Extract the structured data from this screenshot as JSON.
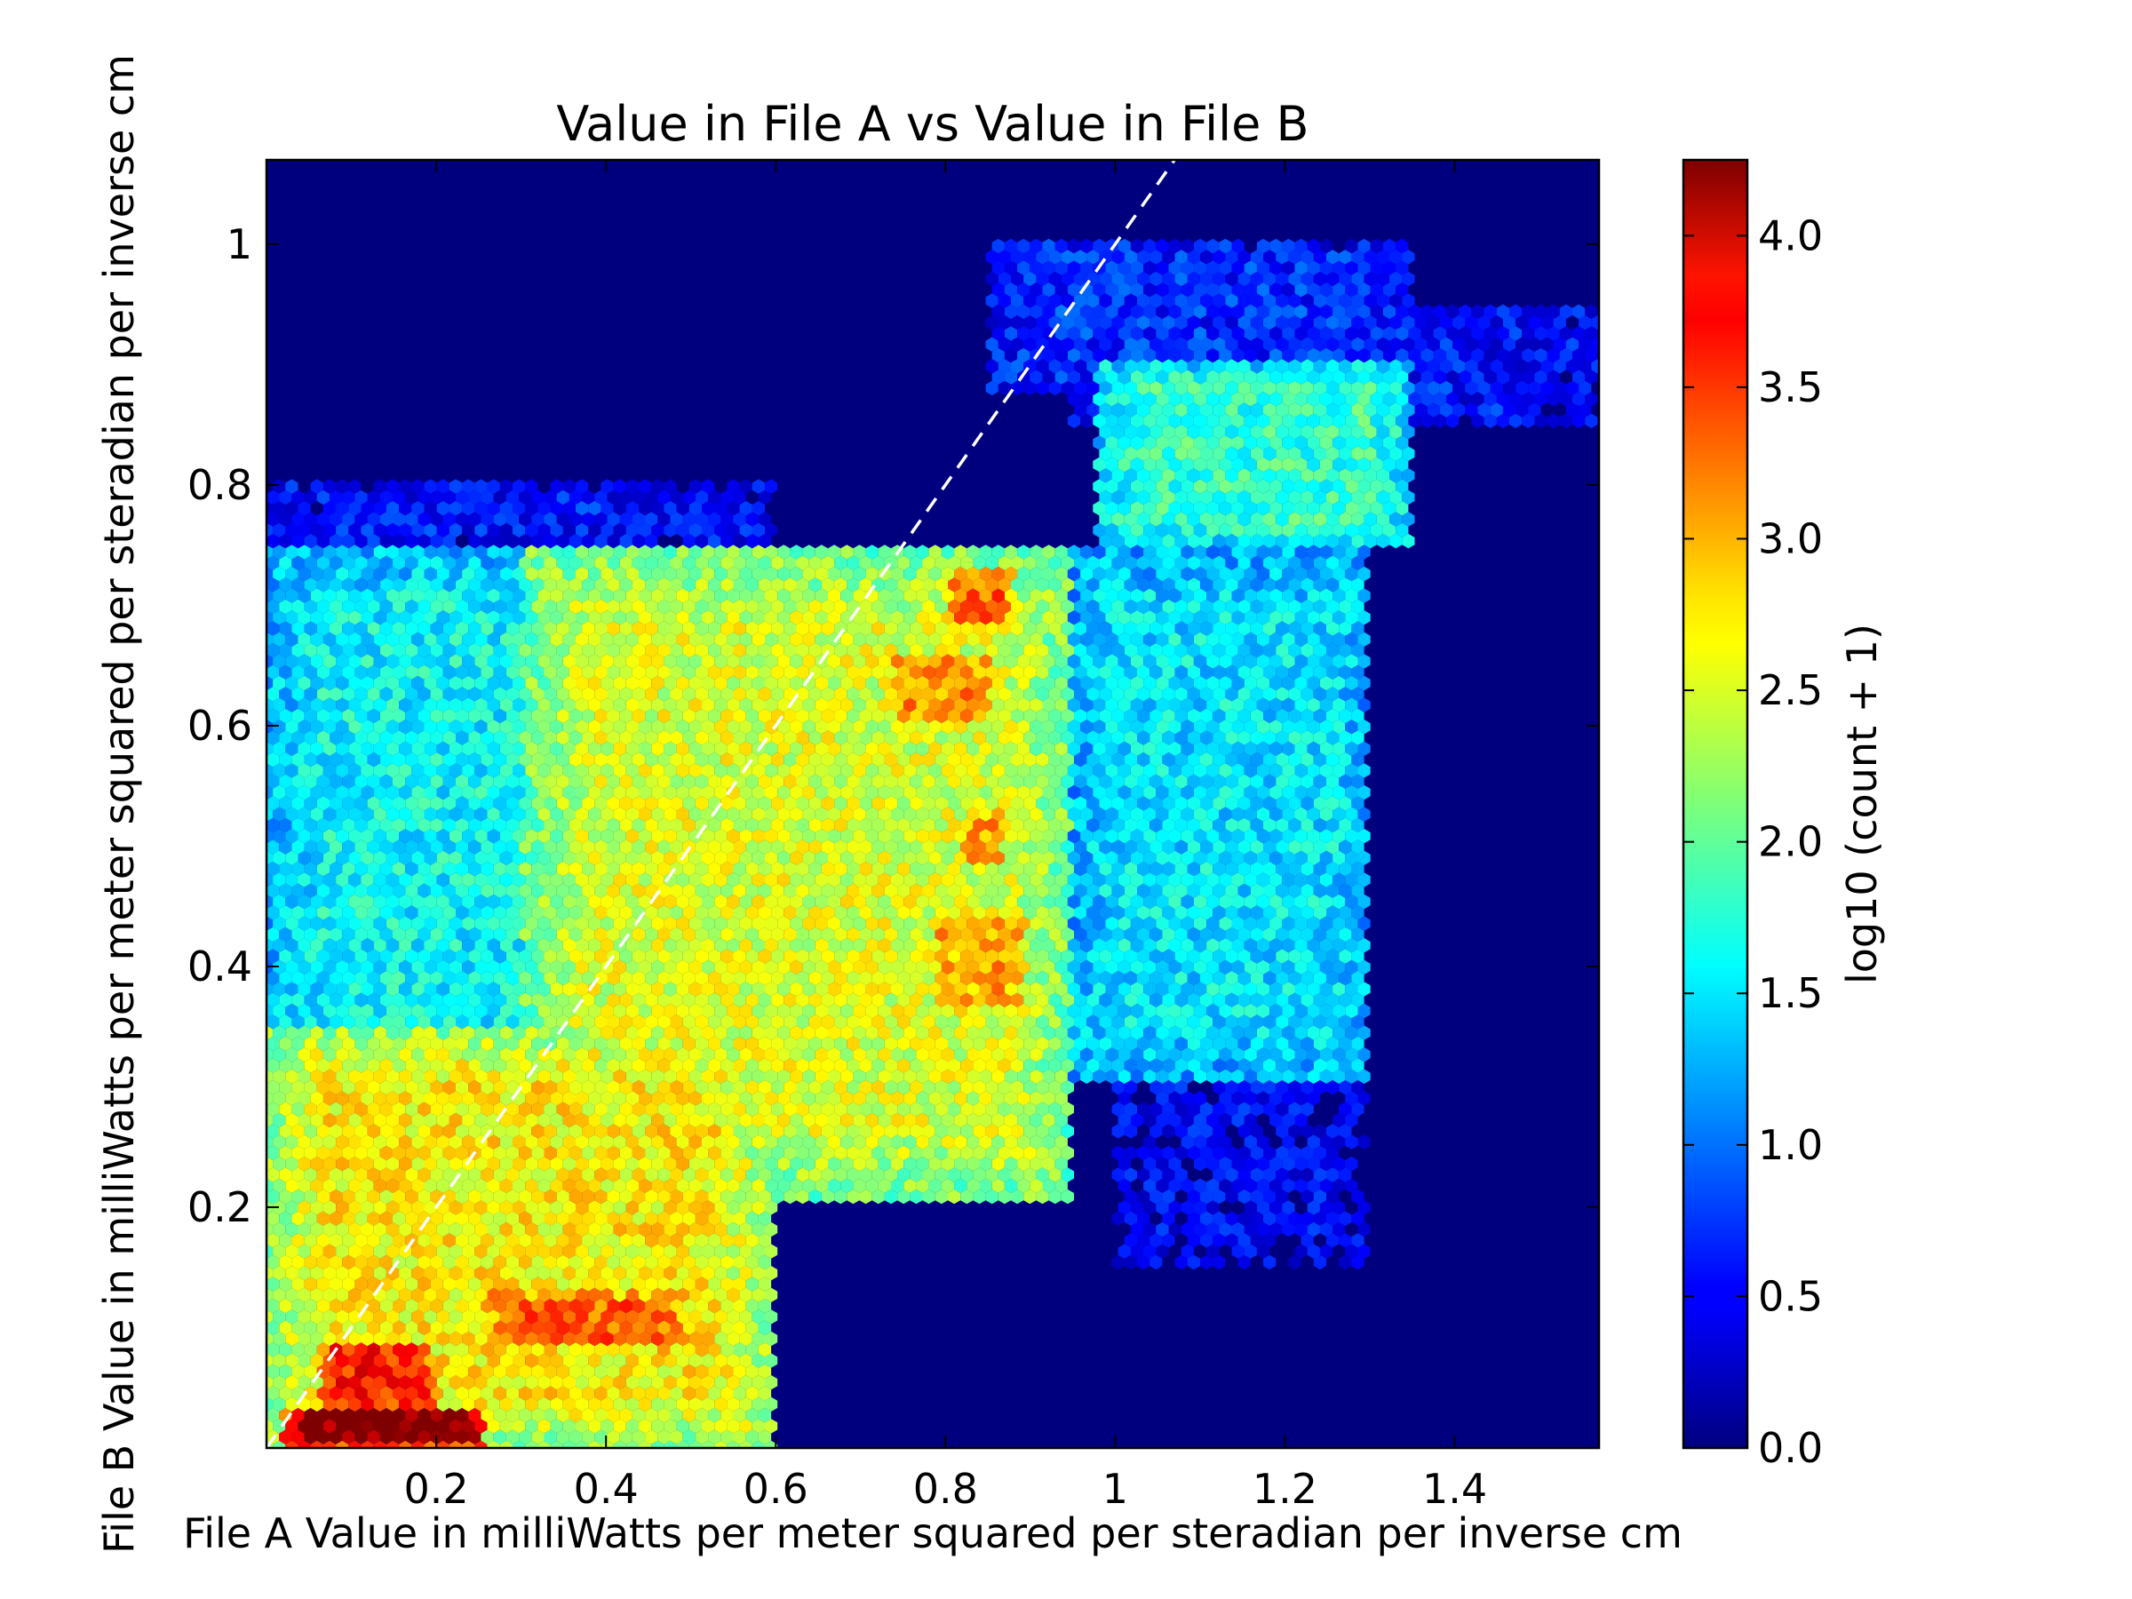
{
  "chart_data": {
    "type": "heatmap",
    "subtype": "hexbin",
    "title": "Value in File A vs Value in File B",
    "xlabel": "File A Value in milliWatts per meter squared per steradian per inverse cm",
    "ylabel": "File B Value in milliWatts per meter squared per steradian per inverse cm",
    "colorbar_label": "log10 (count + 1)",
    "colormap": "jet",
    "xlim": [
      0.0,
      1.57
    ],
    "ylim": [
      0.0,
      1.07
    ],
    "clim": [
      0.0,
      4.25
    ],
    "x_ticks": [
      {
        "value": 0.2,
        "label": "0.2"
      },
      {
        "value": 0.4,
        "label": "0.4"
      },
      {
        "value": 0.6,
        "label": "0.6"
      },
      {
        "value": 0.8,
        "label": "0.8"
      },
      {
        "value": 1.0,
        "label": "1"
      },
      {
        "value": 1.2,
        "label": "1.2"
      },
      {
        "value": 1.4,
        "label": "1.4"
      }
    ],
    "y_ticks": [
      {
        "value": 0.2,
        "label": "0.2"
      },
      {
        "value": 0.4,
        "label": "0.4"
      },
      {
        "value": 0.6,
        "label": "0.6"
      },
      {
        "value": 0.8,
        "label": "0.8"
      },
      {
        "value": 1.0,
        "label": "1"
      }
    ],
    "colorbar_ticks": [
      {
        "value": 0.0,
        "label": "0.0"
      },
      {
        "value": 0.5,
        "label": "0.5"
      },
      {
        "value": 1.0,
        "label": "1.0"
      },
      {
        "value": 1.5,
        "label": "1.5"
      },
      {
        "value": 2.0,
        "label": "2.0"
      },
      {
        "value": 2.5,
        "label": "2.5"
      },
      {
        "value": 3.0,
        "label": "3.0"
      },
      {
        "value": 3.5,
        "label": "3.5"
      },
      {
        "value": 4.0,
        "label": "4.0"
      }
    ],
    "reference_line": {
      "style": "dashed",
      "color": "#ffffff",
      "from": [
        0.0,
        0.0
      ],
      "to": [
        1.07,
        1.07
      ]
    },
    "background_color": "#00007f",
    "density_regions": [
      {
        "x": [
          0.02,
          0.26
        ],
        "y": [
          0.0,
          0.035
        ],
        "level": 4.25
      },
      {
        "x": [
          0.06,
          0.2
        ],
        "y": [
          0.03,
          0.09
        ],
        "level": 3.6
      },
      {
        "x": [
          0.25,
          0.5
        ],
        "y": [
          0.08,
          0.13
        ],
        "level": 3.3
      },
      {
        "x": [
          0.0,
          0.6
        ],
        "y": [
          0.0,
          0.35
        ],
        "level": 2.7
      },
      {
        "x": [
          0.3,
          0.95
        ],
        "y": [
          0.2,
          0.75
        ],
        "level": 2.5
      },
      {
        "x": [
          0.8,
          0.88
        ],
        "y": [
          0.68,
          0.73
        ],
        "level": 3.3
      },
      {
        "x": [
          0.73,
          0.86
        ],
        "y": [
          0.6,
          0.66
        ],
        "level": 3.1
      },
      {
        "x": [
          0.82,
          0.87
        ],
        "y": [
          0.48,
          0.53
        ],
        "level": 3.1
      },
      {
        "x": [
          0.78,
          0.9
        ],
        "y": [
          0.36,
          0.45
        ],
        "level": 3.0
      },
      {
        "x": [
          0.0,
          0.55
        ],
        "y": [
          0.3,
          0.75
        ],
        "level": 1.6
      },
      {
        "x": [
          0.98,
          1.35
        ],
        "y": [
          0.75,
          0.9
        ],
        "level": 1.8
      },
      {
        "x": [
          0.95,
          1.3
        ],
        "y": [
          0.3,
          0.75
        ],
        "level": 1.5
      },
      {
        "x": [
          0.0,
          0.6
        ],
        "y": [
          0.75,
          0.8
        ],
        "level": 0.6
      },
      {
        "x": [
          0.85,
          1.35
        ],
        "y": [
          0.88,
          1.0
        ],
        "level": 0.7
      },
      {
        "x": [
          0.95,
          1.57
        ],
        "y": [
          0.85,
          0.95
        ],
        "level": 0.6
      },
      {
        "x": [
          1.0,
          1.3
        ],
        "y": [
          0.15,
          0.4
        ],
        "level": 0.5
      }
    ]
  }
}
